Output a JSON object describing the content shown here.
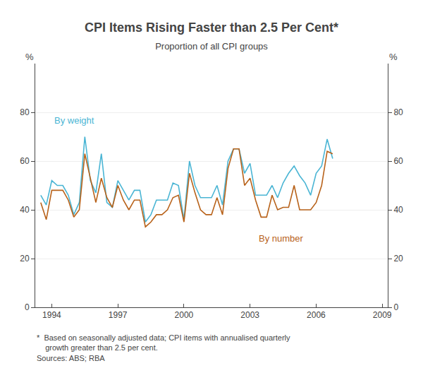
{
  "chart_data": {
    "type": "line",
    "title": "CPI Items Rising Faster than 2.5 Per Cent*",
    "subtitle": "Proportion of all CPI groups",
    "ylabel": "%",
    "y2label": "%",
    "footnote": [
      "*  Based on seasonally adjusted data; CPI items with annualised quarterly",
      "    growth greater than 2.5 per cent.",
      "Sources: ABS; RBA"
    ],
    "x": [
      1993.5,
      1993.75,
      1994,
      1994.25,
      1994.5,
      1994.75,
      1995,
      1995.25,
      1995.5,
      1995.75,
      1996,
      1996.25,
      1996.5,
      1996.75,
      1997,
      1997.25,
      1997.5,
      1997.75,
      1998,
      1998.25,
      1998.5,
      1998.75,
      1999,
      1999.25,
      1999.5,
      1999.75,
      2000,
      2000.25,
      2000.5,
      2000.75,
      2001,
      2001.25,
      2001.5,
      2001.75,
      2002,
      2002.25,
      2002.5,
      2002.75,
      2003,
      2003.25,
      2003.5,
      2003.75,
      2004,
      2004.25,
      2004.5,
      2004.75,
      2005,
      2005.25,
      2005.5,
      2005.75,
      2006,
      2006.25,
      2006.5,
      2006.75
    ],
    "series": [
      {
        "name": "By weight",
        "color": "#4ab5d4",
        "values": [
          46,
          42,
          52,
          50,
          50,
          46,
          38,
          43,
          70,
          52,
          47,
          63,
          43,
          41,
          52,
          48,
          44,
          48,
          48,
          35,
          38,
          44,
          44,
          44,
          51,
          50,
          36,
          60,
          50,
          45,
          45,
          45,
          50,
          42,
          60,
          65,
          65,
          55,
          59,
          46,
          46,
          46,
          50,
          45,
          51,
          55,
          58,
          54,
          51,
          46,
          55,
          58,
          69,
          61
        ]
      },
      {
        "name": "By number",
        "color": "#b8621a",
        "values": [
          43,
          36,
          48,
          48,
          48,
          44,
          37,
          40,
          63,
          53,
          43,
          53,
          45,
          41,
          50,
          44,
          40,
          44,
          44,
          33,
          35,
          38,
          38,
          40,
          45,
          46,
          35,
          55,
          47,
          40,
          38,
          38,
          45,
          38,
          57,
          65,
          65,
          50,
          53,
          44,
          37,
          37,
          46,
          40,
          41,
          41,
          50,
          40,
          40,
          40,
          43,
          50,
          64,
          63
        ]
      }
    ],
    "xlim": [
      1993.25,
      2009.25
    ],
    "xticks": [
      1994,
      1997,
      2000,
      2003,
      2006,
      2009
    ],
    "ylim": [
      0,
      100
    ],
    "yticks": [
      0,
      20,
      40,
      60,
      80
    ],
    "y2lim": [
      0,
      100
    ],
    "y2ticks": [
      0,
      20,
      40,
      60,
      80
    ],
    "grid": true
  }
}
